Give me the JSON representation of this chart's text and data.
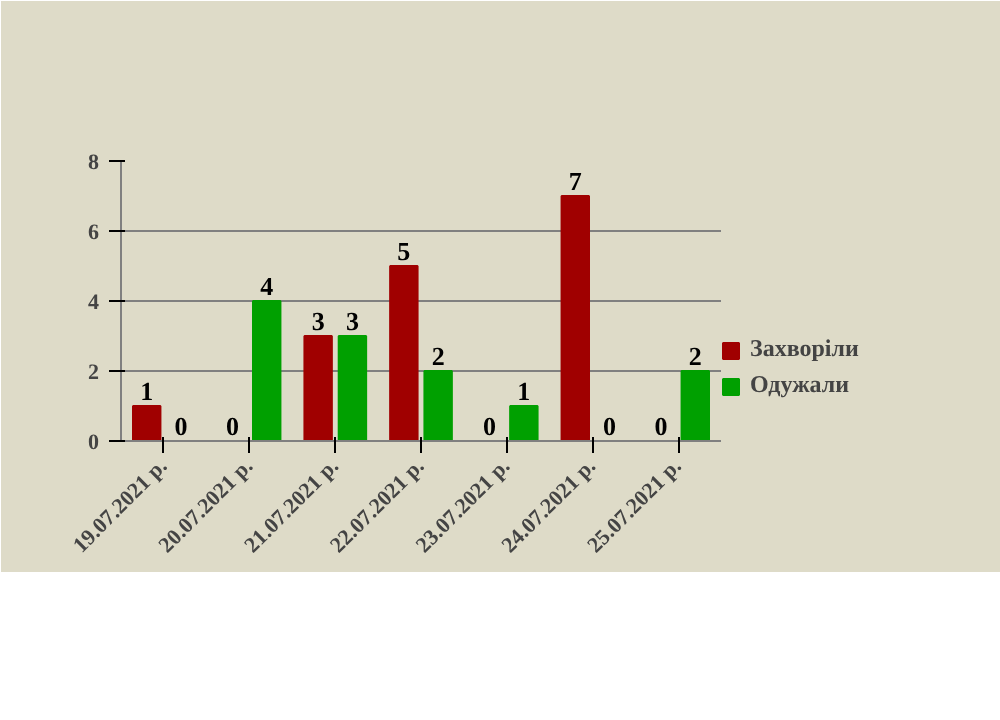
{
  "chart_data": {
    "type": "bar",
    "categories": [
      "19.07.2021 р.",
      "20.07.2021 р.",
      "21.07.2021 р.",
      "22.07.2021 р.",
      "23.07.2021 р.",
      "24.07.2021 р.",
      "25.07.2021 р."
    ],
    "series": [
      {
        "name": "Захворіли",
        "color": "#a00000",
        "values": [
          1,
          0,
          3,
          5,
          0,
          7,
          0
        ]
      },
      {
        "name": "Одужали",
        "color": "#00a000",
        "values": [
          0,
          4,
          3,
          2,
          1,
          0,
          2
        ]
      }
    ],
    "ylim": [
      0,
      8
    ],
    "yticks": [
      0,
      2,
      4,
      6,
      8
    ],
    "grid": "y",
    "legend": "right",
    "data_labels": true
  }
}
